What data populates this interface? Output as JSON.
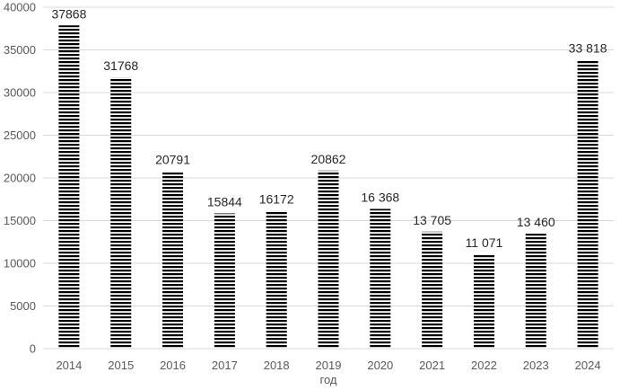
{
  "chart_data": {
    "type": "bar",
    "categories": [
      "2014",
      "2015",
      "2016",
      "2017",
      "2018",
      "2019",
      "2020",
      "2021",
      "2022",
      "2023",
      "2024"
    ],
    "values": [
      37868,
      31768,
      20791,
      15844,
      16172,
      20862,
      16368,
      13705,
      11071,
      13460,
      33818
    ],
    "data_labels": [
      "37868",
      "31768",
      "20791",
      "15844",
      "16172",
      "20862",
      "16 368",
      "13 705",
      "11 071",
      "13 460",
      "33 818"
    ],
    "xlabel": "год",
    "ylabel": "",
    "ylim": [
      0,
      40000
    ],
    "yticks": [
      0,
      5000,
      10000,
      15000,
      20000,
      25000,
      30000,
      35000,
      40000
    ],
    "grid": "horizontal",
    "bar_pattern": "horizontal-stripes",
    "colors": {
      "bar": "#000000",
      "grid": "#d9d9d9",
      "tick_text": "#595959",
      "label_text": "#262626"
    }
  }
}
